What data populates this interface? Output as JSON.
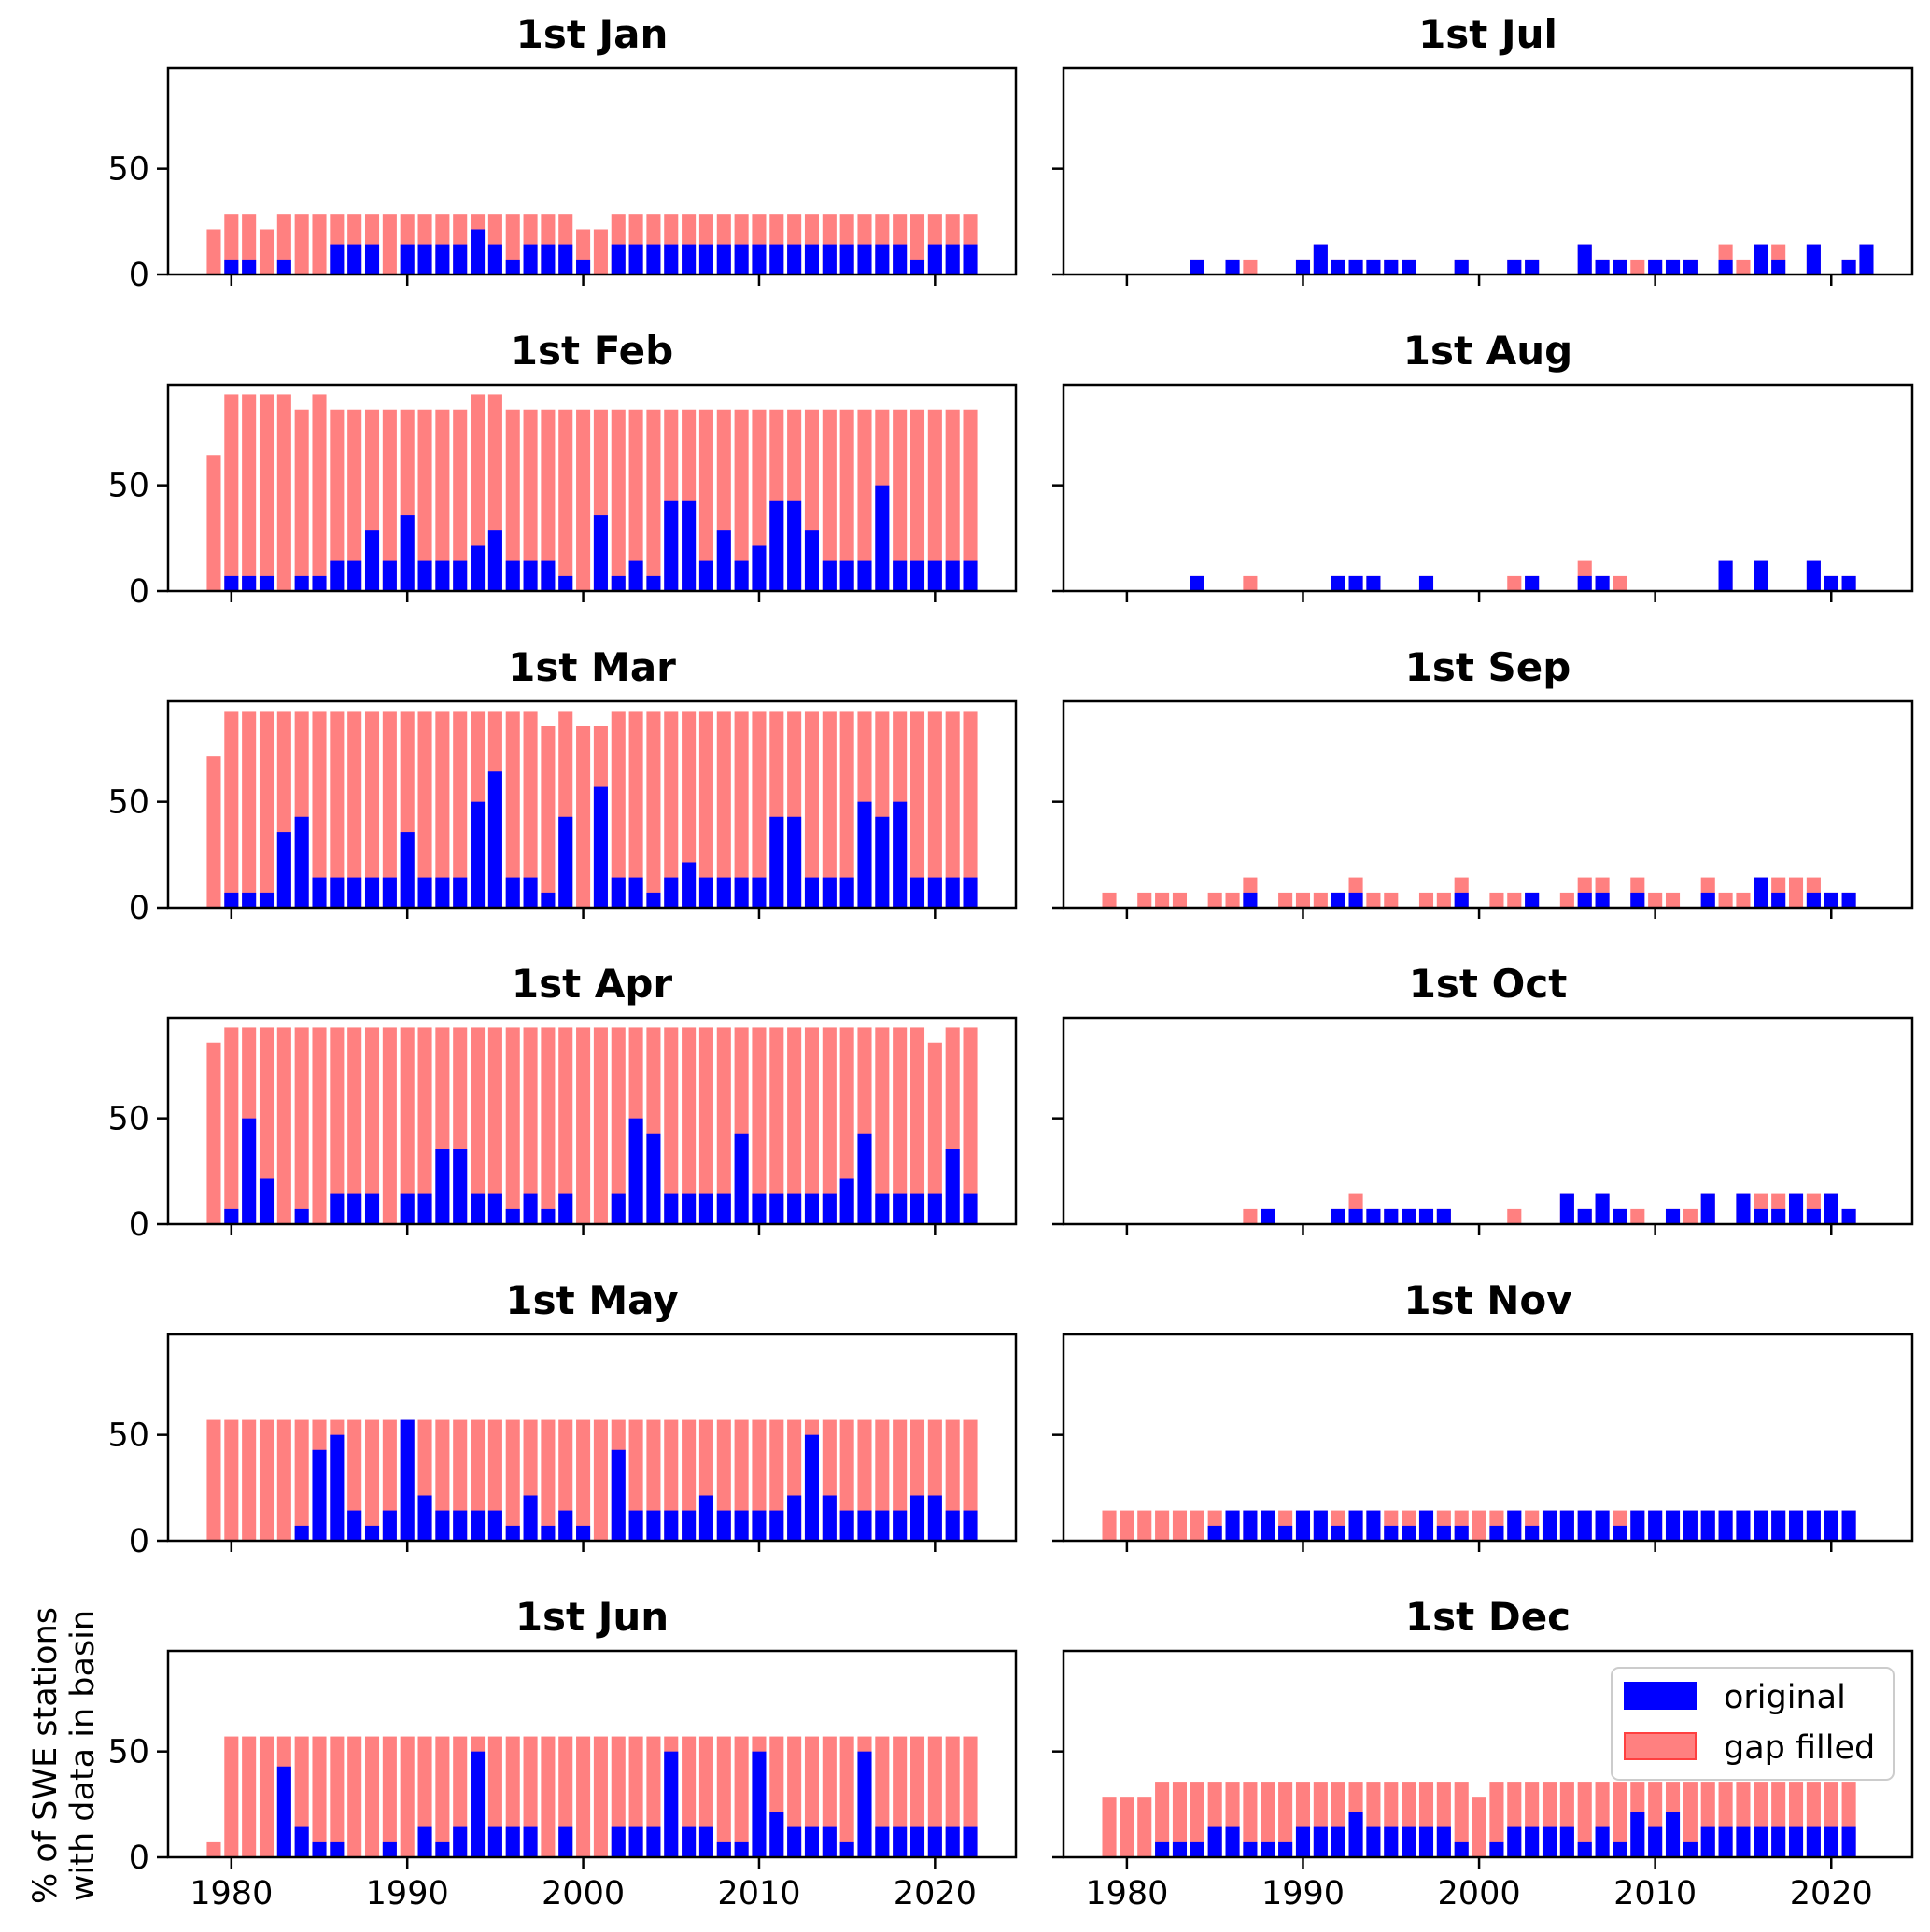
{
  "chart_data": {
    "type": "bar",
    "stacked_overlay": true,
    "figure_ylabel": [
      "% of SWE stations",
      "with data in basin"
    ],
    "xlabel": "",
    "xticks": [
      1980,
      1990,
      2000,
      2010,
      2020
    ],
    "yticks": [
      0,
      50
    ],
    "xlim": [
      1976.4,
      2024.6
    ],
    "ylim": [
      0,
      97.5
    ],
    "grid": false,
    "legend": {
      "placement": "upper-right of 1st Dec panel",
      "entries": [
        {
          "label": "original",
          "color": "#0000ff"
        },
        {
          "label": "gap filled",
          "color": "#ff8080",
          "edge": "#ff4040"
        }
      ]
    },
    "colors": {
      "original": "#0000ff",
      "gap_filled": "#ff8080"
    },
    "years": [
      1979,
      1980,
      1981,
      1982,
      1983,
      1984,
      1985,
      1986,
      1987,
      1988,
      1989,
      1990,
      1991,
      1992,
      1993,
      1994,
      1995,
      1996,
      1997,
      1998,
      1999,
      2000,
      2001,
      2002,
      2003,
      2004,
      2005,
      2006,
      2007,
      2008,
      2009,
      2010,
      2011,
      2012,
      2013,
      2014,
      2015,
      2016,
      2017,
      2018,
      2019,
      2020,
      2021,
      2022
    ],
    "panels": [
      {
        "title": "1st Jan",
        "column": "left",
        "row": 0,
        "gap_filled": [
          21.4,
          28.6,
          28.6,
          21.4,
          28.6,
          28.6,
          28.6,
          28.6,
          28.6,
          28.6,
          28.6,
          28.6,
          28.6,
          28.6,
          28.6,
          28.6,
          28.6,
          28.6,
          28.6,
          28.6,
          28.6,
          21.4,
          21.4,
          28.6,
          28.6,
          28.6,
          28.6,
          28.6,
          28.6,
          28.6,
          28.6,
          28.6,
          28.6,
          28.6,
          28.6,
          28.6,
          28.6,
          28.6,
          28.6,
          28.6,
          28.6,
          28.6,
          28.6,
          28.6
        ],
        "original": [
          0,
          7.1,
          7.1,
          0,
          7.1,
          0,
          0,
          14.3,
          14.3,
          14.3,
          0,
          14.3,
          14.3,
          14.3,
          14.3,
          21.4,
          14.3,
          7.1,
          14.3,
          14.3,
          14.3,
          7.1,
          0,
          14.3,
          14.3,
          14.3,
          14.3,
          14.3,
          14.3,
          14.3,
          14.3,
          14.3,
          14.3,
          14.3,
          14.3,
          14.3,
          14.3,
          14.3,
          14.3,
          14.3,
          7.1,
          14.3,
          14.3,
          14.3
        ]
      },
      {
        "title": "1st Feb",
        "column": "left",
        "row": 1,
        "gap_filled": [
          64.3,
          92.9,
          92.9,
          92.9,
          92.9,
          85.7,
          92.9,
          85.7,
          85.7,
          85.7,
          85.7,
          85.7,
          85.7,
          85.7,
          85.7,
          92.9,
          92.9,
          85.7,
          85.7,
          85.7,
          85.7,
          85.7,
          85.7,
          85.7,
          85.7,
          85.7,
          85.7,
          85.7,
          85.7,
          85.7,
          85.7,
          85.7,
          85.7,
          85.7,
          85.7,
          85.7,
          85.7,
          85.7,
          85.7,
          85.7,
          85.7,
          85.7,
          85.7,
          85.7
        ],
        "original": [
          0,
          7.1,
          7.1,
          7.1,
          0,
          7.1,
          7.1,
          14.3,
          14.3,
          28.6,
          14.3,
          35.7,
          14.3,
          14.3,
          14.3,
          21.4,
          28.6,
          14.3,
          14.3,
          14.3,
          7.1,
          0,
          35.7,
          7.1,
          14.3,
          7.1,
          42.9,
          42.9,
          14.3,
          28.6,
          14.3,
          21.4,
          42.9,
          42.9,
          28.6,
          14.3,
          14.3,
          14.3,
          50,
          14.3,
          14.3,
          14.3,
          14.3,
          14.3
        ]
      },
      {
        "title": "1st Mar",
        "column": "left",
        "row": 2,
        "gap_filled": [
          71.4,
          92.9,
          92.9,
          92.9,
          92.9,
          92.9,
          92.9,
          92.9,
          92.9,
          92.9,
          92.9,
          92.9,
          92.9,
          92.9,
          92.9,
          92.9,
          92.9,
          92.9,
          92.9,
          85.7,
          92.9,
          85.7,
          85.7,
          92.9,
          92.9,
          92.9,
          92.9,
          92.9,
          92.9,
          92.9,
          92.9,
          92.9,
          92.9,
          92.9,
          92.9,
          92.9,
          92.9,
          92.9,
          92.9,
          92.9,
          92.9,
          92.9,
          92.9,
          92.9
        ],
        "original": [
          0,
          7.1,
          7.1,
          7.1,
          35.7,
          42.9,
          14.3,
          14.3,
          14.3,
          14.3,
          14.3,
          35.7,
          14.3,
          14.3,
          14.3,
          50,
          64.3,
          14.3,
          14.3,
          7.1,
          42.9,
          0,
          57.1,
          14.3,
          14.3,
          7.1,
          14.3,
          21.4,
          14.3,
          14.3,
          14.3,
          14.3,
          42.9,
          42.9,
          14.3,
          14.3,
          14.3,
          50,
          42.9,
          50,
          14.3,
          14.3,
          14.3,
          14.3
        ]
      },
      {
        "title": "1st Apr",
        "column": "left",
        "row": 3,
        "gap_filled": [
          85.7,
          92.9,
          92.9,
          92.9,
          92.9,
          92.9,
          92.9,
          92.9,
          92.9,
          92.9,
          92.9,
          92.9,
          92.9,
          92.9,
          92.9,
          92.9,
          92.9,
          92.9,
          92.9,
          92.9,
          92.9,
          92.9,
          92.9,
          92.9,
          92.9,
          92.9,
          92.9,
          92.9,
          92.9,
          92.9,
          92.9,
          92.9,
          92.9,
          92.9,
          92.9,
          92.9,
          92.9,
          92.9,
          92.9,
          92.9,
          92.9,
          85.7,
          92.9,
          92.9
        ],
        "original": [
          0,
          7.1,
          50,
          21.4,
          0,
          7.1,
          0,
          14.3,
          14.3,
          14.3,
          0,
          14.3,
          14.3,
          35.7,
          35.7,
          14.3,
          14.3,
          7.1,
          14.3,
          7.1,
          14.3,
          0,
          0,
          14.3,
          50,
          42.9,
          14.3,
          14.3,
          14.3,
          14.3,
          42.9,
          14.3,
          14.3,
          14.3,
          14.3,
          14.3,
          21.4,
          42.9,
          14.3,
          14.3,
          14.3,
          14.3,
          35.7,
          14.3
        ]
      },
      {
        "title": "1st May",
        "column": "left",
        "row": 4,
        "gap_filled": [
          57.1,
          57.1,
          57.1,
          57.1,
          57.1,
          57.1,
          57.1,
          57.1,
          57.1,
          57.1,
          57.1,
          57.1,
          57.1,
          57.1,
          57.1,
          57.1,
          57.1,
          57.1,
          57.1,
          57.1,
          57.1,
          57.1,
          57.1,
          57.1,
          57.1,
          57.1,
          57.1,
          57.1,
          57.1,
          57.1,
          57.1,
          57.1,
          57.1,
          57.1,
          57.1,
          57.1,
          57.1,
          57.1,
          57.1,
          57.1,
          57.1,
          57.1,
          57.1,
          57.1
        ],
        "original": [
          0,
          0,
          0,
          0,
          0,
          7.1,
          42.9,
          50,
          14.3,
          7.1,
          14.3,
          57.1,
          21.4,
          14.3,
          14.3,
          14.3,
          14.3,
          7.1,
          21.4,
          7.1,
          14.3,
          7.1,
          0,
          42.9,
          14.3,
          14.3,
          14.3,
          14.3,
          21.4,
          14.3,
          14.3,
          14.3,
          14.3,
          21.4,
          50,
          21.4,
          14.3,
          14.3,
          14.3,
          14.3,
          21.4,
          21.4,
          14.3,
          14.3
        ]
      },
      {
        "title": "1st Jun",
        "column": "left",
        "row": 5,
        "gap_filled": [
          7.1,
          57.1,
          57.1,
          57.1,
          57.1,
          57.1,
          57.1,
          57.1,
          57.1,
          57.1,
          57.1,
          57.1,
          57.1,
          57.1,
          57.1,
          57.1,
          57.1,
          57.1,
          57.1,
          57.1,
          57.1,
          57.1,
          57.1,
          57.1,
          57.1,
          57.1,
          57.1,
          57.1,
          57.1,
          57.1,
          57.1,
          57.1,
          57.1,
          57.1,
          57.1,
          57.1,
          57.1,
          57.1,
          57.1,
          57.1,
          57.1,
          57.1,
          57.1,
          57.1
        ],
        "original": [
          0,
          0,
          0,
          0,
          42.9,
          14.3,
          7.1,
          7.1,
          0,
          0,
          7.1,
          0,
          14.3,
          7.1,
          14.3,
          50,
          14.3,
          14.3,
          14.3,
          0,
          14.3,
          0,
          0,
          14.3,
          14.3,
          14.3,
          50,
          14.3,
          14.3,
          7.1,
          7.1,
          50,
          21.4,
          14.3,
          14.3,
          14.3,
          7.1,
          50,
          14.3,
          14.3,
          14.3,
          14.3,
          14.3,
          14.3
        ]
      },
      {
        "title": "1st Jul",
        "column": "right",
        "row": 0,
        "gap_filled": [
          0,
          0,
          0,
          0,
          0,
          7.1,
          0,
          7.1,
          7.1,
          0,
          0,
          7.1,
          14.3,
          7.1,
          7.1,
          7.1,
          7.1,
          7.1,
          0,
          0,
          7.1,
          0,
          0,
          7.1,
          7.1,
          0,
          0,
          14.3,
          7.1,
          7.1,
          7.1,
          7.1,
          7.1,
          7.1,
          0,
          14.3,
          7.1,
          14.3,
          14.3,
          0,
          14.3,
          0,
          7.1,
          14.3
        ],
        "original": [
          0,
          0,
          0,
          0,
          0,
          7.1,
          0,
          7.1,
          0,
          0,
          0,
          7.1,
          14.3,
          7.1,
          7.1,
          7.1,
          7.1,
          7.1,
          0,
          0,
          7.1,
          0,
          0,
          7.1,
          7.1,
          0,
          0,
          14.3,
          7.1,
          7.1,
          0,
          7.1,
          7.1,
          7.1,
          0,
          7.1,
          0,
          14.3,
          7.1,
          0,
          14.3,
          0,
          7.1,
          14.3
        ]
      },
      {
        "title": "1st Aug",
        "column": "right",
        "row": 1,
        "gap_filled": [
          0,
          0,
          0,
          0,
          0,
          7.1,
          0,
          0,
          7.1,
          0,
          0,
          0,
          0,
          7.1,
          7.1,
          7.1,
          0,
          0,
          7.1,
          0,
          0,
          0,
          0,
          7.1,
          7.1,
          0,
          0,
          14.3,
          7.1,
          7.1,
          0,
          0,
          0,
          0,
          0,
          14.3,
          0,
          14.3,
          0,
          0,
          14.3,
          7.1,
          7.1,
          0
        ],
        "original": [
          0,
          0,
          0,
          0,
          0,
          7.1,
          0,
          0,
          0,
          0,
          0,
          0,
          0,
          7.1,
          7.1,
          7.1,
          0,
          0,
          7.1,
          0,
          0,
          0,
          0,
          0,
          7.1,
          0,
          0,
          7.1,
          7.1,
          0,
          0,
          0,
          0,
          0,
          0,
          14.3,
          0,
          14.3,
          0,
          0,
          14.3,
          7.1,
          7.1,
          0
        ]
      },
      {
        "title": "1st Sep",
        "column": "right",
        "row": 2,
        "gap_filled": [
          7.1,
          0,
          7.1,
          7.1,
          7.1,
          0,
          7.1,
          7.1,
          14.3,
          0,
          7.1,
          7.1,
          7.1,
          7.1,
          14.3,
          7.1,
          7.1,
          0,
          7.1,
          7.1,
          14.3,
          0,
          7.1,
          7.1,
          7.1,
          0,
          7.1,
          14.3,
          14.3,
          0,
          14.3,
          7.1,
          7.1,
          0,
          14.3,
          7.1,
          7.1,
          14.3,
          14.3,
          14.3,
          14.3,
          7.1,
          7.1,
          0
        ],
        "original": [
          0,
          0,
          0,
          0,
          0,
          0,
          0,
          0,
          7.1,
          0,
          0,
          0,
          0,
          7.1,
          7.1,
          0,
          0,
          0,
          0,
          0,
          7.1,
          0,
          0,
          0,
          7.1,
          0,
          0,
          7.1,
          7.1,
          0,
          7.1,
          0,
          0,
          0,
          7.1,
          0,
          0,
          14.3,
          7.1,
          0,
          7.1,
          7.1,
          7.1,
          0
        ]
      },
      {
        "title": "1st Oct",
        "column": "right",
        "row": 3,
        "gap_filled": [
          0,
          0,
          0,
          0,
          0,
          0,
          0,
          0,
          7.1,
          7.1,
          0,
          0,
          0,
          7.1,
          14.3,
          7.1,
          7.1,
          7.1,
          7.1,
          7.1,
          0,
          0,
          0,
          7.1,
          0,
          0,
          14.3,
          7.1,
          14.3,
          7.1,
          7.1,
          0,
          7.1,
          7.1,
          14.3,
          0,
          14.3,
          14.3,
          14.3,
          14.3,
          14.3,
          14.3,
          7.1,
          0
        ],
        "original": [
          0,
          0,
          0,
          0,
          0,
          0,
          0,
          0,
          0,
          7.1,
          0,
          0,
          0,
          7.1,
          7.1,
          7.1,
          7.1,
          7.1,
          7.1,
          7.1,
          0,
          0,
          0,
          0,
          0,
          0,
          14.3,
          7.1,
          14.3,
          7.1,
          0,
          0,
          7.1,
          0,
          14.3,
          0,
          14.3,
          7.1,
          7.1,
          14.3,
          7.1,
          14.3,
          7.1,
          0
        ]
      },
      {
        "title": "1st Nov",
        "column": "right",
        "row": 4,
        "gap_filled": [
          14.3,
          14.3,
          14.3,
          14.3,
          14.3,
          14.3,
          14.3,
          14.3,
          14.3,
          14.3,
          14.3,
          14.3,
          14.3,
          14.3,
          14.3,
          14.3,
          14.3,
          14.3,
          14.3,
          14.3,
          14.3,
          14.3,
          14.3,
          14.3,
          14.3,
          14.3,
          14.3,
          14.3,
          14.3,
          14.3,
          14.3,
          14.3,
          14.3,
          14.3,
          14.3,
          14.3,
          14.3,
          14.3,
          14.3,
          14.3,
          14.3,
          14.3,
          14.3,
          0
        ],
        "original": [
          0,
          0,
          0,
          0,
          0,
          0,
          7.1,
          14.3,
          14.3,
          14.3,
          7.1,
          14.3,
          14.3,
          7.1,
          14.3,
          14.3,
          7.1,
          7.1,
          14.3,
          7.1,
          7.1,
          0,
          7.1,
          14.3,
          7.1,
          14.3,
          14.3,
          14.3,
          14.3,
          7.1,
          14.3,
          14.3,
          14.3,
          14.3,
          14.3,
          14.3,
          14.3,
          14.3,
          14.3,
          14.3,
          14.3,
          14.3,
          14.3,
          0
        ]
      },
      {
        "title": "1st Dec",
        "column": "right",
        "row": 5,
        "gap_filled": [
          28.6,
          28.6,
          28.6,
          35.7,
          35.7,
          35.7,
          35.7,
          35.7,
          35.7,
          35.7,
          35.7,
          35.7,
          35.7,
          35.7,
          35.7,
          35.7,
          35.7,
          35.7,
          35.7,
          35.7,
          35.7,
          28.6,
          35.7,
          35.7,
          35.7,
          35.7,
          35.7,
          35.7,
          35.7,
          35.7,
          35.7,
          35.7,
          35.7,
          35.7,
          35.7,
          35.7,
          35.7,
          35.7,
          35.7,
          35.7,
          35.7,
          35.7,
          35.7,
          0
        ],
        "original": [
          0,
          0,
          0,
          7.1,
          7.1,
          7.1,
          14.3,
          14.3,
          7.1,
          7.1,
          7.1,
          14.3,
          14.3,
          14.3,
          21.4,
          14.3,
          14.3,
          14.3,
          14.3,
          14.3,
          7.1,
          0,
          7.1,
          14.3,
          14.3,
          14.3,
          14.3,
          7.1,
          14.3,
          7.1,
          21.4,
          14.3,
          21.4,
          7.1,
          14.3,
          14.3,
          14.3,
          14.3,
          14.3,
          14.3,
          14.3,
          14.3,
          14.3,
          0
        ]
      }
    ]
  }
}
